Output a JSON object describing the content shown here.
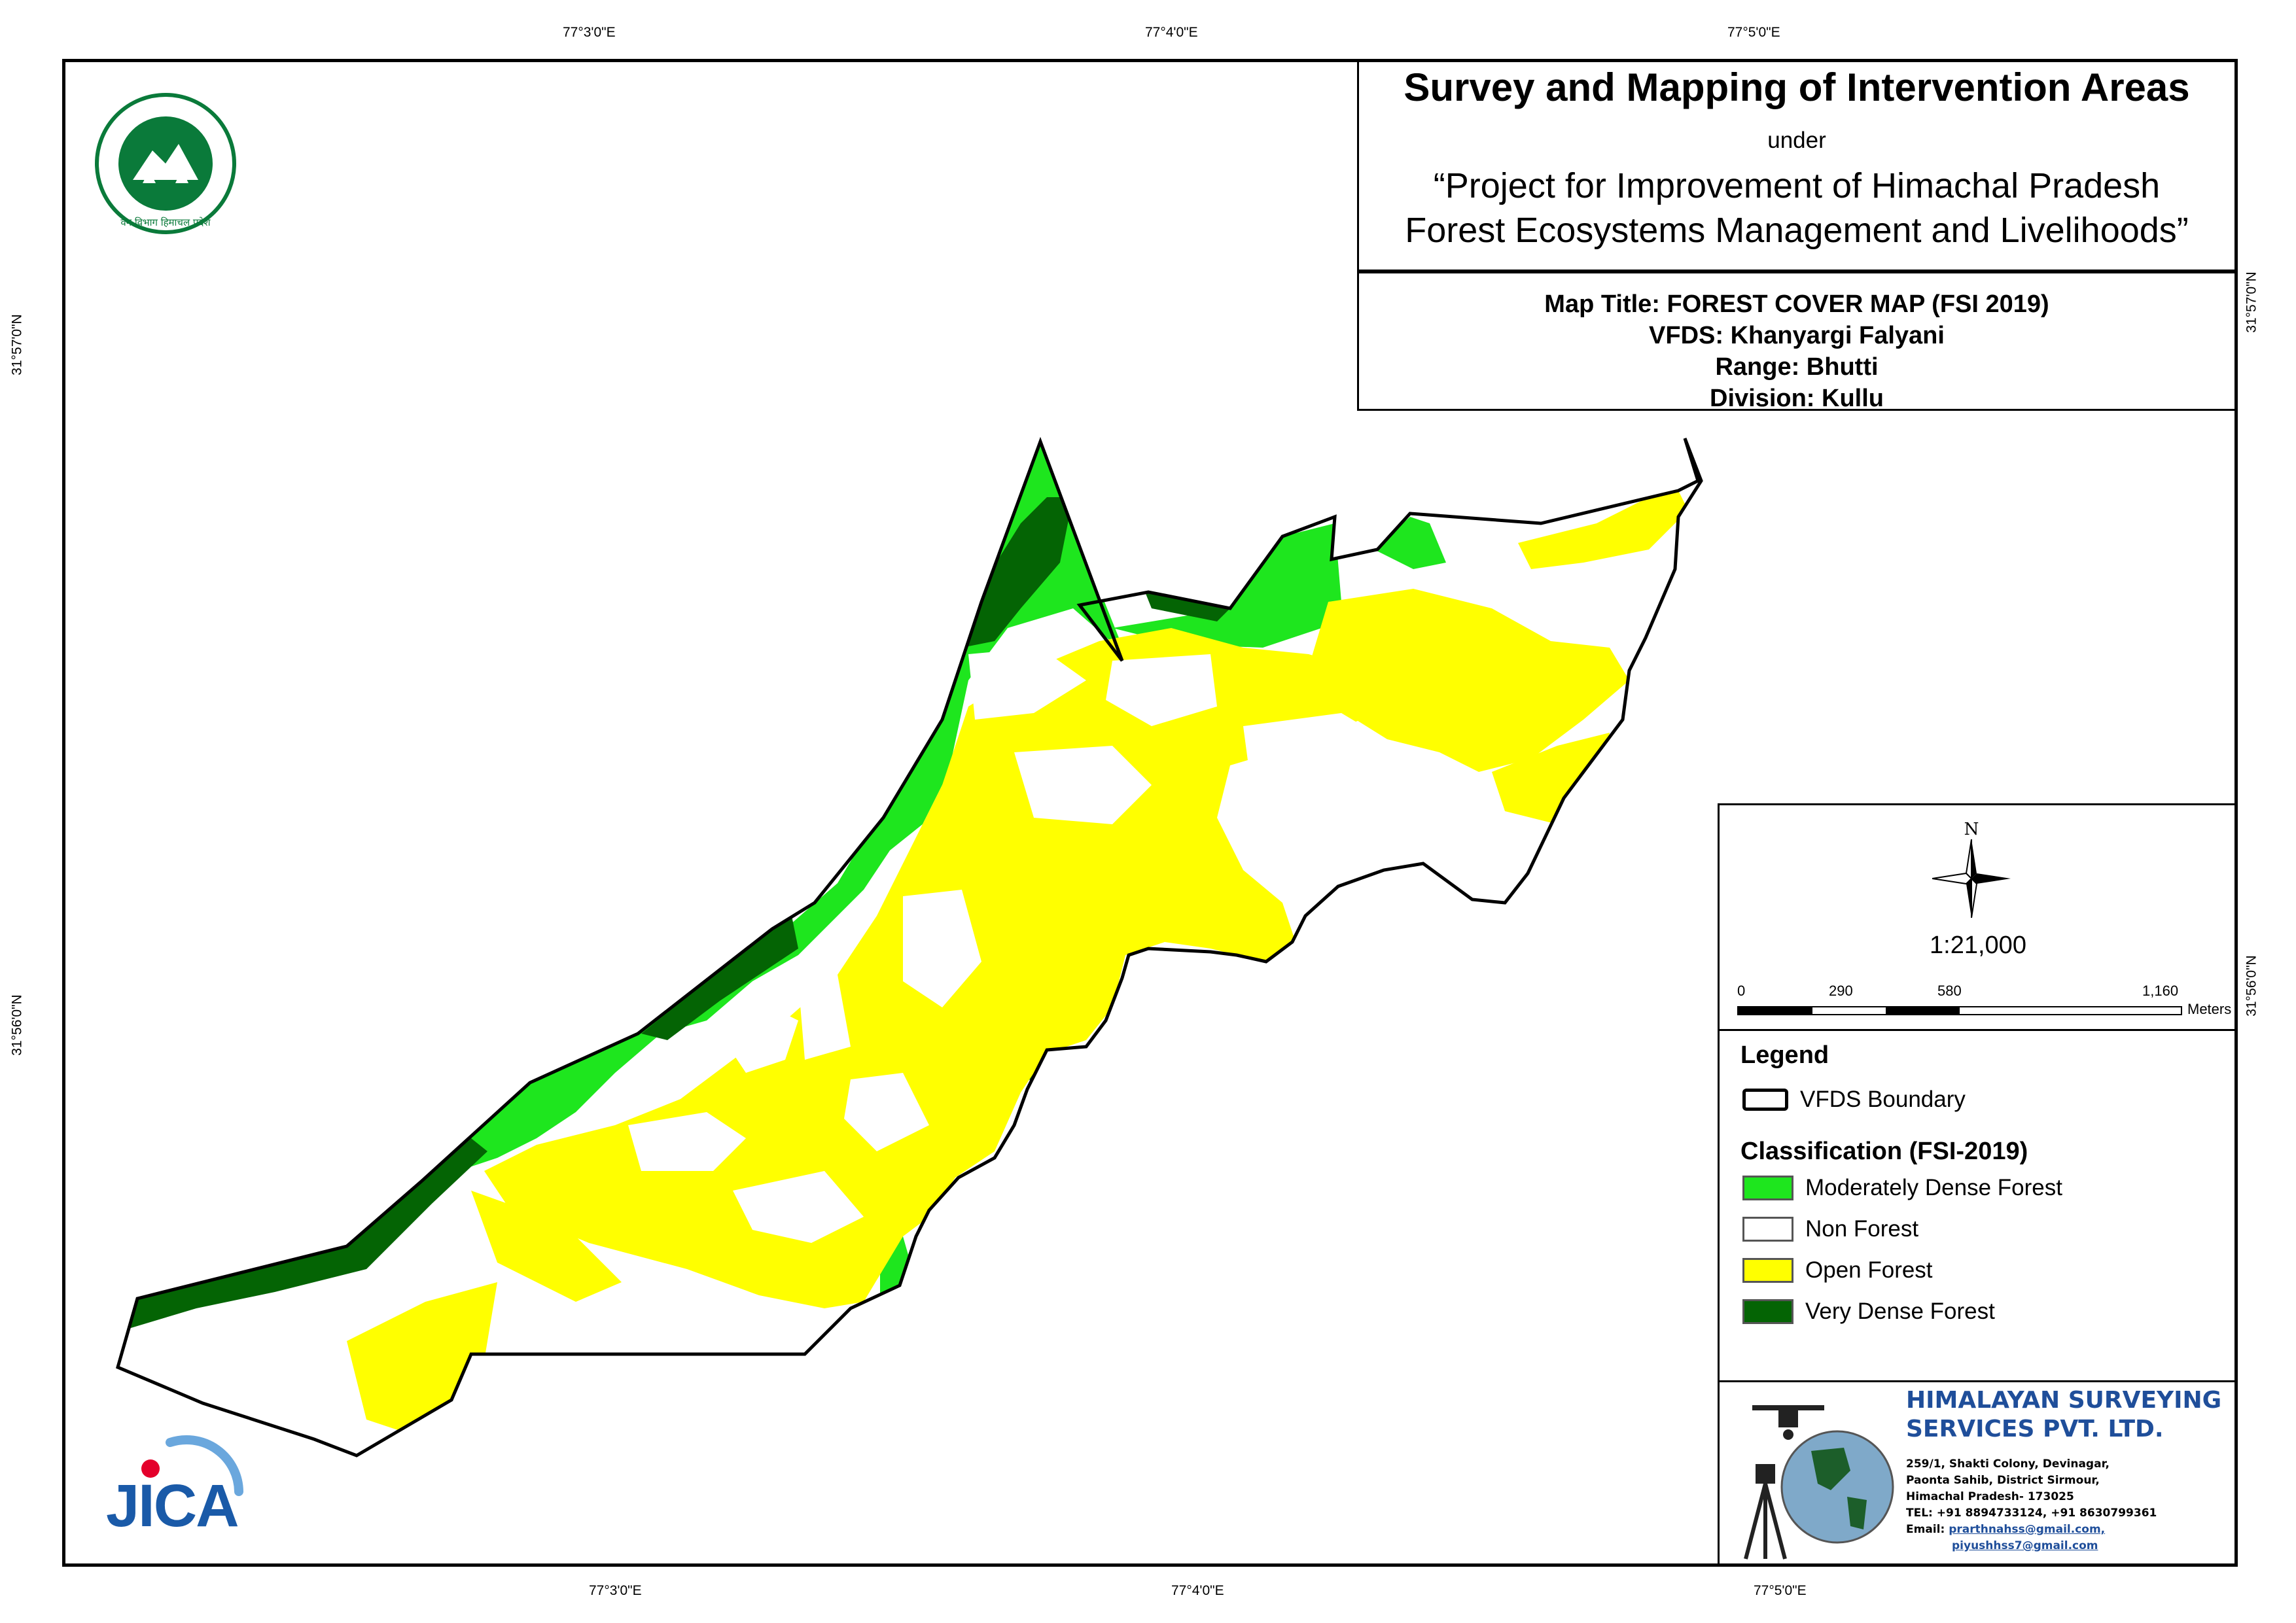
{
  "coordinates": {
    "top": [
      "77°3'0\"E",
      "77°4'0\"E",
      "77°5'0\"E"
    ],
    "bottom": [
      "77°3'0\"E",
      "77°4'0\"E",
      "77°5'0\"E"
    ],
    "left": [
      "31°57'0\"N",
      "31°56'0\"N"
    ],
    "right": [
      "31°57'0\"N",
      "31°56'0\"N"
    ]
  },
  "title": {
    "main": "Survey and Mapping of Intervention Areas",
    "under": "under",
    "project_line1": "“Project for Improvement of Himachal Pradesh",
    "project_line2": "Forest Ecosystems Management and Livelihoods”"
  },
  "map_info": {
    "map_title": "Map Title: FOREST COVER MAP (FSI 2019)",
    "vfds": "VFDS: Khanyargi Falyani",
    "range": "Range: Bhutti",
    "division": "Division: Kullu"
  },
  "north_arrow": {
    "label": "N"
  },
  "scale": {
    "ratio": "1:21,000",
    "ticks": [
      "0",
      "290",
      "580",
      "1,160"
    ],
    "unit": "Meters"
  },
  "legend": {
    "title": "Legend",
    "boundary_label": "VFDS Boundary",
    "classification_title": "Classification (FSI-2019)",
    "classes": [
      {
        "label": "Moderately Dense Forest",
        "color": "#1ee61e"
      },
      {
        "label": "Non Forest",
        "color": "#ffffff"
      },
      {
        "label": "Open Forest",
        "color": "#ffff00"
      },
      {
        "label": "Very Dense Forest",
        "color": "#046404"
      }
    ]
  },
  "company": {
    "name_line1": "HIMALAYAN SURVEYING",
    "name_line2": "SERVICES PVT. LTD.",
    "address_line1": "259/1, Shakti Colony, Devinagar,",
    "address_line2": "Paonta Sahib, District Sirmour,",
    "address_line3": "Himachal Pradesh- 173025",
    "tel": "TEL: +91 8894733124, +91 8630799361",
    "email_label": "Email:",
    "email1": "prarthnahss@gmail.com,",
    "email2": "piyushhss7@gmail.com"
  },
  "logos": {
    "forest_dept_text": "वन विभाग हिमाचल प्रदेश",
    "jica": "JICA"
  }
}
